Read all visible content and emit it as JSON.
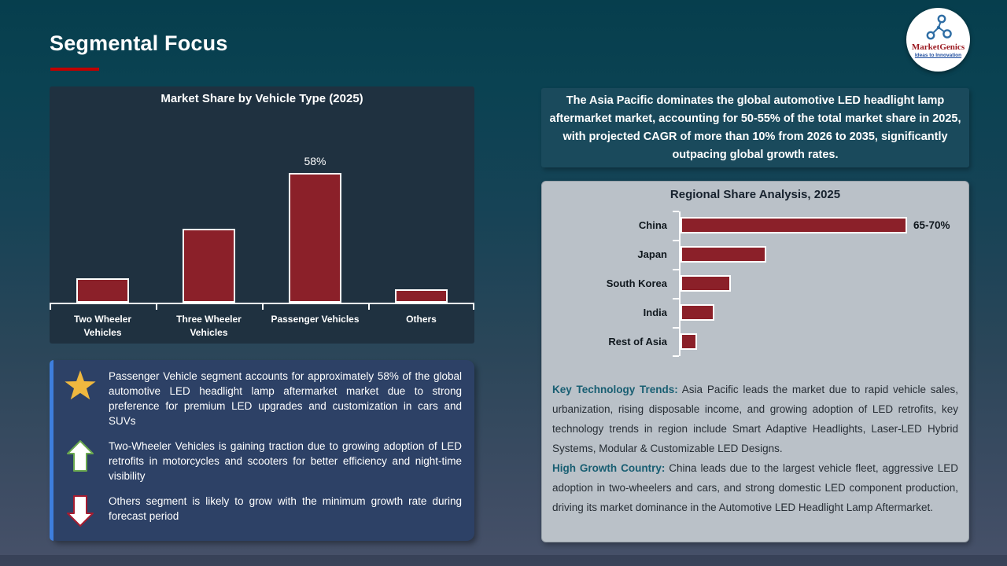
{
  "page": {
    "title": "Segmental Focus"
  },
  "logo": {
    "name": "MarketGenics",
    "tagline": "Ideas to Innovation"
  },
  "apac_highlight": "The Asia Pacific dominates the global automotive LED headlight lamp aftermarket market, accounting for 50-55% of the total market share in 2025, with projected CAGR of more than 10% from 2026 to 2035, significantly outpacing global growth rates.",
  "chart_data": [
    {
      "type": "bar",
      "orientation": "vertical",
      "title": "Market Share by Vehicle Type  (2025)",
      "categories": [
        "Two Wheeler Vehicles",
        "Three Wheeler Vehicles",
        "Passenger Vehicles",
        "Others"
      ],
      "values": [
        11,
        33,
        58,
        6
      ],
      "data_labels": [
        "",
        "",
        "58%",
        ""
      ],
      "unit": "%",
      "ylim": [
        0,
        65
      ],
      "grid": false,
      "legend": false,
      "bar_color": "#8B2029",
      "note": "Only the Passenger Vehicles bar carries a printed label (58%); other values estimated from bar heights."
    },
    {
      "type": "bar",
      "orientation": "horizontal",
      "title": "Regional Share Analysis, 2025",
      "categories": [
        "China",
        "Japan",
        "South Korea",
        "India",
        "Rest of Asia"
      ],
      "values": [
        67.5,
        25.5,
        15,
        10,
        5
      ],
      "data_labels": [
        "65-70%",
        "",
        "",
        "",
        ""
      ],
      "unit": "%",
      "xlim": [
        0,
        85
      ],
      "grid": false,
      "legend": false,
      "bar_color": "#8B2029",
      "note": "Only the China bar carries a printed label (65-70%); other values estimated from bar lengths."
    }
  ],
  "insight_box": {
    "items": [
      {
        "icon": "star-icon",
        "text": "Passenger Vehicle segment accounts for approximately 58% of the global automotive LED headlight lamp aftermarket market due to strong preference for premium LED upgrades and customization in cars and SUVs"
      },
      {
        "icon": "up-arrow-icon",
        "text": "Two-Wheeler Vehicles is gaining traction due to growing adoption of LED retrofits in motorcycles and scooters for better efficiency and night-time visibility"
      },
      {
        "icon": "down-arrow-icon",
        "text": "Others segment is likely to grow with the minimum growth rate during forecast period"
      }
    ]
  },
  "regional_panel": {
    "trends_label": "Key Technology Trends:",
    "trends_text": " Asia Pacific leads the market due to rapid vehicle sales, urbanization, rising disposable income, and growing adoption of LED retrofits, key technology trends in region include Smart Adaptive Headlights, Laser-LED Hybrid Systems, Modular & Customizable LED Designs.",
    "growth_label": "High Growth Country:",
    "growth_text": " China leads due to the largest vehicle fleet, aggressive LED adoption in two-wheelers and cars, and strong domestic LED component production, driving its market dominance in the Automotive LED Headlight Lamp Aftermarket."
  }
}
